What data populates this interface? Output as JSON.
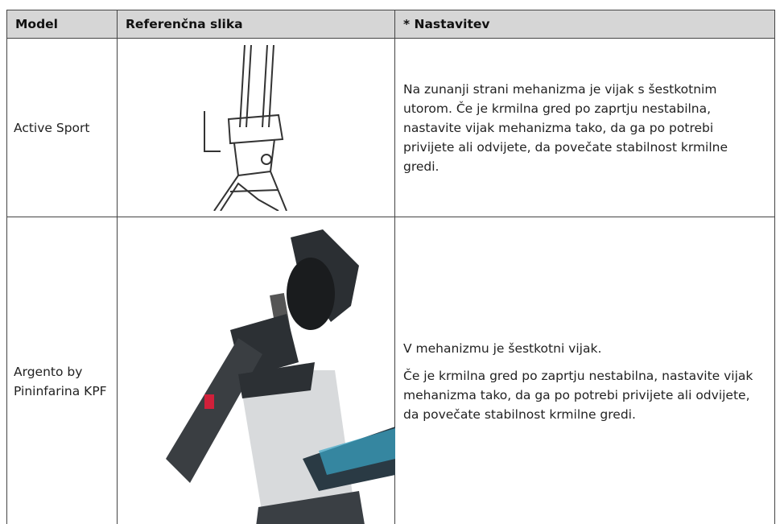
{
  "table": {
    "header": [
      "Model",
      "Referenčna slika",
      "* Nastavitev"
    ],
    "rows": [
      {
        "model": "Active Sport",
        "paragraphs": [
          "Na zunanji strani mehanizma je vijak s šestkotnim utorom. Če je krmilna gred po zaprtju nestabilna, nastavite vijak mehanizma tako, da ga po potrebi privijete ali odvijete, da povečate stabilnost krmilne gredi."
        ]
      },
      {
        "model": "Argento by Pininfarina KPF",
        "paragraphs": [
          "V mehanizmu je šestkotni vijak.",
          "Če je krmilna gred po zaprtju nestabilna, nastavite vijak mehanizma tako, da ga po potrebi privijete ali odvijete, da povečate stabilnost krmilne gredi."
        ]
      }
    ]
  }
}
